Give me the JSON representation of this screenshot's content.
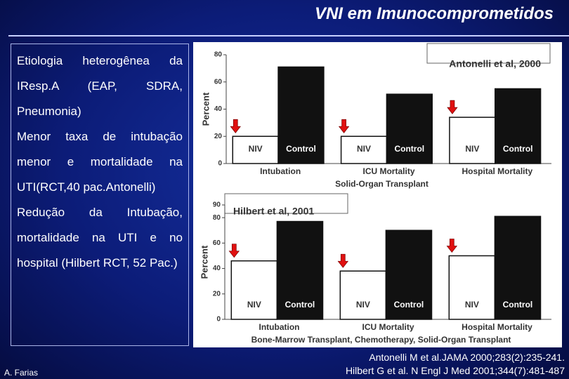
{
  "slide": {
    "title": "VNI em Imunocomprometidos",
    "bullets": [
      "Etiologia heterogênea da IResp.A (EAP, SDRA, Pneumonia)",
      "Menor taxa de intubação menor e mortalidade na UTI(RCT,40 pac.Antonelli)",
      "Redução da Intubação, mortalidade na UTI e no hospital (Hilbert RCT, 52 Pac.)"
    ],
    "author": "A. Farias",
    "references": [
      "Antonelli M et al.JAMA 2000;283(2):235-241.",
      "Hilbert G et al. N Engl J Med 2001;344(7):481-487"
    ]
  },
  "chart_data": [
    {
      "type": "bar",
      "title": "Antonelli et al, 2000",
      "x_label": "Solid-Organ Transplant",
      "y_label": "Percent",
      "categories": [
        "Intubation",
        "ICU Mortality",
        "Hospital Mortality"
      ],
      "series": [
        {
          "name": "NIV",
          "color": "#ffffff",
          "values": [
            20,
            20,
            34
          ]
        },
        {
          "name": "Control",
          "color": "#111111",
          "values": [
            71,
            51,
            55
          ]
        }
      ],
      "ylim": [
        0,
        80
      ],
      "yticks": [
        0,
        20,
        40,
        60,
        80
      ]
    },
    {
      "type": "bar",
      "title": "Hilbert et al, 2001",
      "x_label": "Bone-Marrow Transplant, Chemotherapy, Solid-Organ Transplant",
      "y_label": "Percent",
      "categories": [
        "Intubation",
        "ICU Mortality",
        "Hospital Mortality"
      ],
      "series": [
        {
          "name": "NIV",
          "color": "#ffffff",
          "values": [
            46,
            38,
            50
          ]
        },
        {
          "name": "Control",
          "color": "#111111",
          "values": [
            77,
            70,
            81
          ]
        }
      ],
      "ylim": [
        0,
        90
      ],
      "yticks": [
        0,
        20,
        40,
        60,
        80,
        90
      ]
    }
  ]
}
